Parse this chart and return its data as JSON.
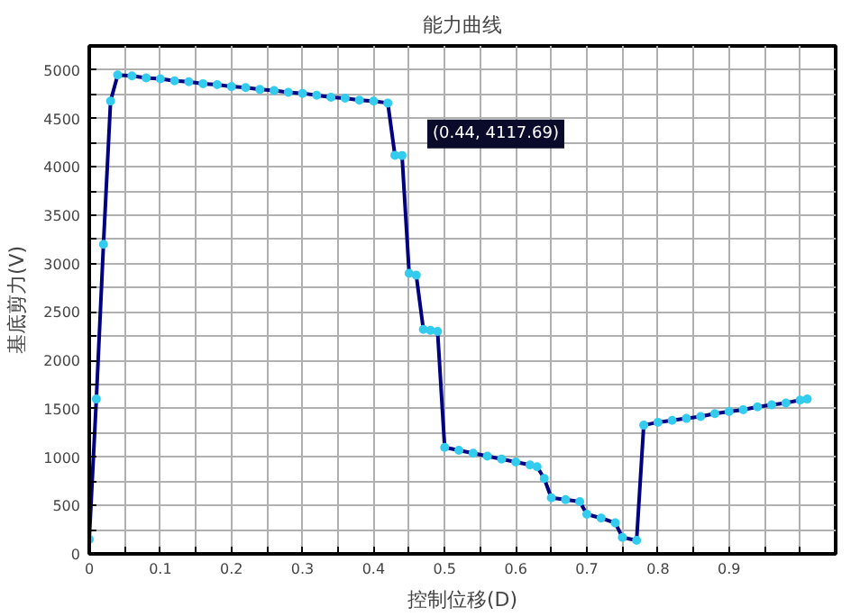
{
  "chart_data": {
    "type": "line",
    "title": "能力曲线",
    "xlabel": "控制位移(D)",
    "ylabel": "基底剪力(V)",
    "x": [
      0,
      0.01,
      0.02,
      0.03,
      0.04,
      0.06,
      0.08,
      0.1,
      0.12,
      0.14,
      0.16,
      0.18,
      0.2,
      0.22,
      0.24,
      0.26,
      0.28,
      0.3,
      0.32,
      0.34,
      0.36,
      0.38,
      0.4,
      0.42,
      0.43,
      0.44,
      0.45,
      0.46,
      0.47,
      0.48,
      0.49,
      0.5,
      0.52,
      0.54,
      0.56,
      0.58,
      0.6,
      0.62,
      0.63,
      0.64,
      0.65,
      0.67,
      0.69,
      0.7,
      0.72,
      0.74,
      0.75,
      0.77,
      0.78,
      0.8,
      0.82,
      0.84,
      0.86,
      0.88,
      0.9,
      0.92,
      0.94,
      0.96,
      0.98,
      1.0,
      1.01
    ],
    "series": [
      {
        "color": "#000080",
        "values": [
          150,
          1600,
          3200,
          4680,
          4950,
          4940,
          4920,
          4910,
          4890,
          4880,
          4860,
          4850,
          4830,
          4820,
          4800,
          4790,
          4770,
          4760,
          4740,
          4720,
          4710,
          4690,
          4680,
          4660,
          4120,
          4117.69,
          2900,
          2880,
          2320,
          2310,
          2300,
          1100,
          1070,
          1040,
          1010,
          980,
          950,
          920,
          900,
          780,
          580,
          560,
          540,
          410,
          370,
          320,
          170,
          140,
          1330,
          1360,
          1380,
          1400,
          1420,
          1450,
          1470,
          1490,
          1520,
          1540,
          1560,
          1590,
          1600
        ]
      }
    ],
    "marker": "circle",
    "line_style": "solid",
    "grid": true,
    "xlim": [
      0,
      1.05
    ],
    "ylim": [
      0,
      5250
    ],
    "xticks": [
      0,
      {
        "value": 0.05,
        "label": null
      },
      0.1,
      {
        "value": 0.15,
        "label": null
      },
      0.2,
      {
        "value": 0.25,
        "label": null
      },
      0.3,
      {
        "value": 0.35,
        "label": null
      },
      0.4,
      {
        "value": 0.45,
        "label": null
      },
      0.5,
      {
        "value": 0.55,
        "label": null
      },
      0.6,
      {
        "value": 0.65,
        "label": null
      },
      0.7,
      {
        "value": 0.75,
        "label": null
      },
      0.8,
      {
        "value": 0.85,
        "label": null
      },
      0.9,
      {
        "value": 0.95,
        "label": null
      },
      {
        "value": 1.0,
        "label": null
      },
      {
        "value": 1.05,
        "label": null
      }
    ],
    "yticks": [
      0,
      {
        "value": 250,
        "label": null
      },
      500,
      {
        "value": 750,
        "label": null
      },
      1000,
      {
        "value": 1250,
        "label": null
      },
      1500,
      {
        "value": 1750,
        "label": null
      },
      2000,
      {
        "value": 2250,
        "label": null
      },
      2500,
      {
        "value": 2750,
        "label": null
      },
      3000,
      {
        "value": 3250,
        "label": null
      },
      3500,
      {
        "value": 3750,
        "label": null
      },
      4000,
      {
        "value": 4250,
        "label": null
      },
      4500,
      {
        "value": 4750,
        "label": null
      },
      5000,
      {
        "value": 5250,
        "label": null
      }
    ],
    "annotations": [
      {
        "text": "(0.44, 4117.69)",
        "x": 0.44,
        "y": 4117.69
      }
    ]
  }
}
